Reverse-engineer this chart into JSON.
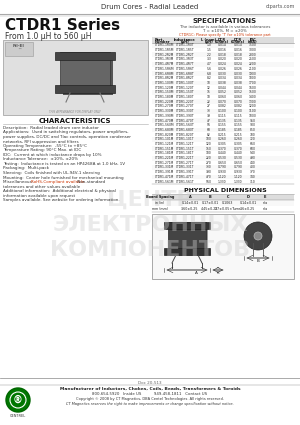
{
  "title_header": "Drum Cores - Radial Leaded",
  "website_header": "ctparts.com",
  "series_title": "CTDR1 Series",
  "series_subtitle": "From 1.0 μH to 560 μH",
  "specs_title": "SPECIFICATIONS",
  "specs_subtitle1": "The inductor is available in various tolerances",
  "specs_subtitle2": "T = ±10%, M = ±20%",
  "specs_note": "CTDR1C: Please specify 'T' for ±10% tolerance part",
  "specs_col_headers": [
    "Part\nNumber",
    "Inductance\n(μH)",
    "L (nom)\n(μH)",
    "DCR\n(Ohms)",
    "DCR\n(Ohms)",
    "IDC\n(mA)"
  ],
  "specs_data": [
    [
      "CTDR1-1R0M  CTDR1-1R0T",
      "1.0",
      "1.0",
      "0.014",
      "0.014",
      "3500"
    ],
    [
      "CTDR1-1R5M  CTDR1-1R5T",
      "1.5",
      "1.5",
      "0.016",
      "0.016",
      "3000"
    ],
    [
      "CTDR1-2R2M  CTDR1-2R2T",
      "2.2",
      "2.2",
      "0.018",
      "0.018",
      "2800"
    ],
    [
      "CTDR1-3R3M  CTDR1-3R3T",
      "3.3",
      "3.3",
      "0.020",
      "0.020",
      "2500"
    ],
    [
      "CTDR1-4R7M  CTDR1-4R7T",
      "4.7",
      "4.7",
      "0.024",
      "0.024",
      "2200"
    ],
    [
      "CTDR1-5R6M  CTDR1-5R6T",
      "5.6",
      "5.6",
      "0.026",
      "0.026",
      "2100"
    ],
    [
      "CTDR1-6R8M  CTDR1-6R8T",
      "6.8",
      "6.8",
      "0.030",
      "0.030",
      "1900"
    ],
    [
      "CTDR1-8R2M  CTDR1-8R2T",
      "8.2",
      "8.2",
      "0.034",
      "0.034",
      "1800"
    ],
    [
      "CTDR1-100M  CTDR1-100T",
      "10",
      "10",
      "0.038",
      "0.038",
      "1700"
    ],
    [
      "CTDR1-120M  CTDR1-120T",
      "12",
      "12",
      "0.044",
      "0.044",
      "1600"
    ],
    [
      "CTDR1-150M  CTDR1-150T",
      "15",
      "15",
      "0.052",
      "0.052",
      "1500"
    ],
    [
      "CTDR1-180M  CTDR1-180T",
      "18",
      "18",
      "0.060",
      "0.060",
      "1400"
    ],
    [
      "CTDR1-220M  CTDR1-220T",
      "22",
      "22",
      "0.070",
      "0.070",
      "1300"
    ],
    [
      "CTDR1-270M  CTDR1-270T",
      "27",
      "27",
      "0.082",
      "0.082",
      "1200"
    ],
    [
      "CTDR1-330M  CTDR1-330T",
      "33",
      "33",
      "0.100",
      "0.100",
      "1100"
    ],
    [
      "CTDR1-390M  CTDR1-390T",
      "39",
      "39",
      "0.115",
      "0.115",
      "1000"
    ],
    [
      "CTDR1-470M  CTDR1-470T",
      "47",
      "47",
      "0.135",
      "0.135",
      "950"
    ],
    [
      "CTDR1-560M  CTDR1-560T",
      "56",
      "56",
      "0.155",
      "0.155",
      "900"
    ],
    [
      "CTDR1-680M  CTDR1-680T",
      "68",
      "68",
      "0.185",
      "0.185",
      "850"
    ],
    [
      "CTDR1-820M  CTDR1-820T",
      "82",
      "82",
      "0.215",
      "0.215",
      "780"
    ],
    [
      "CTDR1-101M  CTDR1-101T",
      "100",
      "100",
      "0.260",
      "0.260",
      "720"
    ],
    [
      "CTDR1-121M  CTDR1-121T",
      "120",
      "120",
      "0.305",
      "0.305",
      "660"
    ],
    [
      "CTDR1-151M  CTDR1-151T",
      "150",
      "150",
      "0.370",
      "0.370",
      "600"
    ],
    [
      "CTDR1-181M  CTDR1-181T",
      "180",
      "180",
      "0.440",
      "0.440",
      "540"
    ],
    [
      "CTDR1-221M  CTDR1-221T",
      "220",
      "220",
      "0.530",
      "0.530",
      "490"
    ],
    [
      "CTDR1-271M  CTDR1-271T",
      "270",
      "270",
      "0.650",
      "0.650",
      "440"
    ],
    [
      "CTDR1-331M  CTDR1-331T",
      "330",
      "330",
      "0.790",
      "0.790",
      "400"
    ],
    [
      "CTDR1-391M  CTDR1-391T",
      "390",
      "390",
      "0.930",
      "0.930",
      "370"
    ],
    [
      "CTDR1-471M  CTDR1-471T",
      "470",
      "470",
      "1.120",
      "1.120",
      "340"
    ],
    [
      "CTDR1-561M  CTDR1-561T",
      "560",
      "560",
      "1.330",
      "1.330",
      "310"
    ]
  ],
  "char_title": "CHARACTERISTICS",
  "char_lines": [
    "Description:  Radial leaded drum core inductor",
    "Applications:  Used in switching regulators, power amplifiers,",
    "power supplies, DC/DC and Tlac controls, operation condenser",
    "networks, RFI suppression and filters",
    "Operating Temperature:  -55°C to +85°C",
    "Temperature Rating: 90°C Max. at IDC",
    "IDC:  Current at which inductance drops by 10%",
    "Inductance Tolerance:  ±10%, ±20%",
    "Testing:  Inductance is tested on an HP4268A at 1.0 kHz, 1V",
    "Packaging:  Multi-pack",
    "Sleeving:  Coils finished with UL-94V-1 sleeving",
    "Mounting:  Center hole furnished for mechanical mounting",
    "Miscellaneous:  RoHS-Compliant available. Non-standard",
    "tolerances and other values available",
    "Additional information:  Additional electrical & physical",
    "information available upon request",
    "Samples available. See website for ordering information."
  ],
  "phys_title": "PHYSICAL DIMENSIONS",
  "phys_col_headers": [
    "Board\nSpacing",
    "A",
    "B",
    "C",
    "D",
    "E"
  ],
  "phys_row1": [
    "in (in)",
    "0.14±0.01",
    "0.17±0.01",
    "0.1063",
    "0.14±0.01",
    "n/a"
  ],
  "phys_row2": [
    "mm (mm)",
    "3.60±0.25",
    "4.45±0.25",
    "2.7±0.05×Turns",
    "3.6±0.25",
    "n/a"
  ],
  "footer_doc": "Doc 20-513",
  "footer_line1": "Manufacturer of Inductors, Chokes, Coils, Beads, Transformers & Toroids",
  "footer_line2": "800-654-5920   Inside US          949-458-1811   Contact US",
  "footer_line3": "Copyright © 2008 by CT Magnetics, DBA Centel Technologies. All rights reserved.",
  "footer_line4": "CT Magnetics reserves the right to make improvements or change specification without notice.",
  "bg_color": "#ffffff",
  "watermark_lines": [
    "ЦЕНТР",
    "ЭЛЕКТРОННЫХ",
    "КОМПОНЕНТОВ"
  ],
  "rohs_color": "#cc3300"
}
